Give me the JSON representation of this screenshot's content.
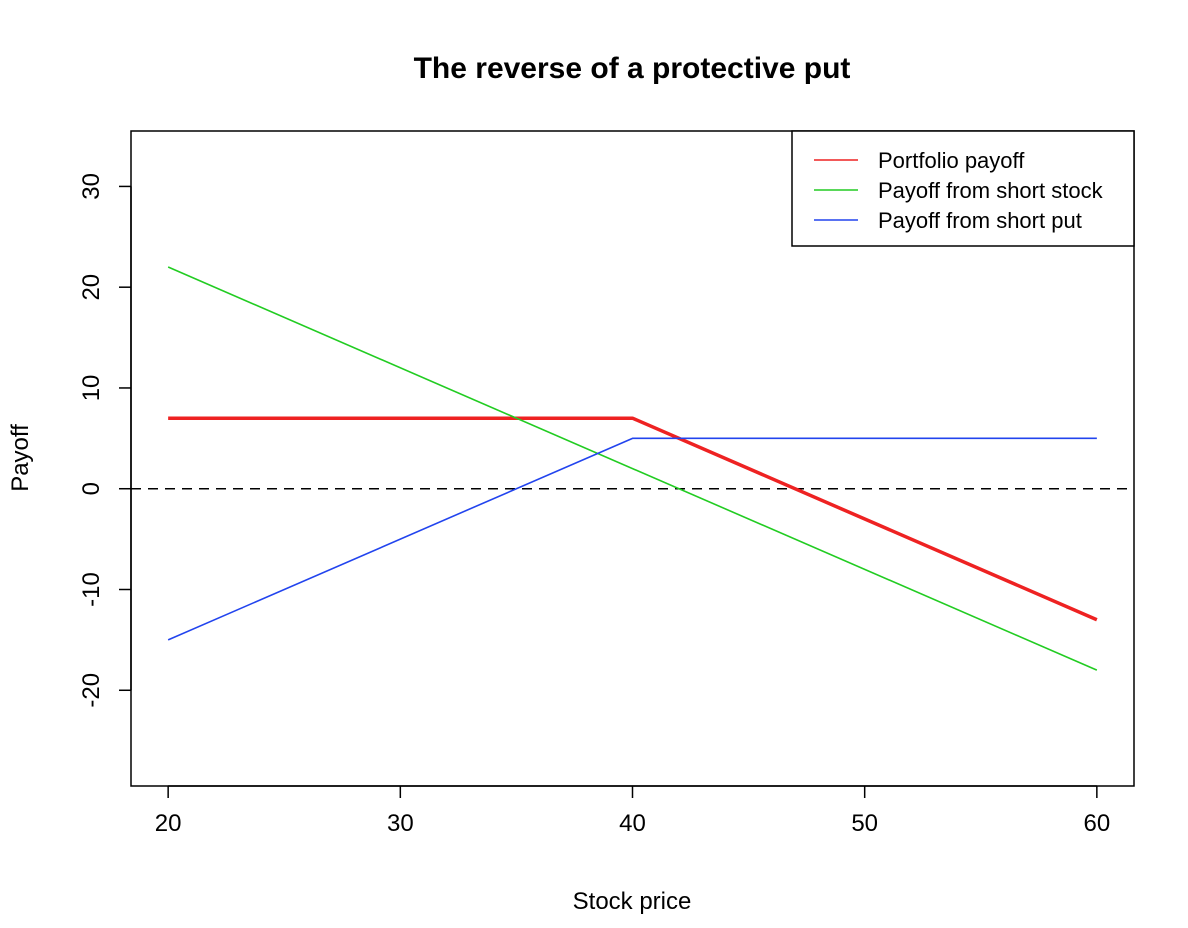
{
  "chart_data": {
    "type": "line",
    "title": "The reverse of a protective put",
    "xlabel": "Stock price",
    "ylabel": "Payoff",
    "xlim": [
      18.4,
      61.6
    ],
    "ylim": [
      -29.5,
      35.5
    ],
    "xticks": [
      20,
      30,
      40,
      50,
      60
    ],
    "yticks": [
      -20,
      -10,
      0,
      10,
      20,
      30
    ],
    "grid": false,
    "legend_position": "top-right",
    "reference_line": {
      "y": 0,
      "style": "dashed",
      "color": "#000000"
    },
    "series": [
      {
        "name": "Portfolio payoff",
        "color": "#ee2222",
        "bold": true,
        "x": [
          20,
          40,
          60
        ],
        "y": [
          7,
          7,
          -13
        ]
      },
      {
        "name": "Payoff from short stock",
        "color": "#22cc22",
        "bold": false,
        "x": [
          20,
          60
        ],
        "y": [
          22,
          -18
        ]
      },
      {
        "name": "Payoff from short put",
        "color": "#2244ee",
        "bold": false,
        "x": [
          20,
          40,
          60
        ],
        "y": [
          -15,
          5,
          5
        ]
      }
    ]
  }
}
